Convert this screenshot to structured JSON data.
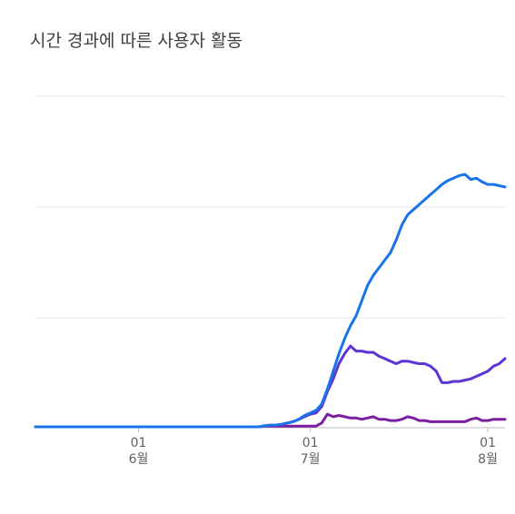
{
  "title": "시간 경과에 따른 사용자 활동",
  "chart_data": {
    "type": "line",
    "title": "시간 경과에 따른 사용자 활동",
    "xlabel": "",
    "ylabel": "",
    "x_ticks": [
      {
        "day": "01",
        "month": "6월",
        "index": 18
      },
      {
        "day": "01",
        "month": "7월",
        "index": 48
      },
      {
        "day": "01",
        "month": "8월",
        "index": 79
      }
    ],
    "y_tick_labels_shown": false,
    "ylim": [
      0,
      100
    ],
    "grid": true,
    "legend": "none",
    "series": [
      {
        "color": "#1a73e8",
        "values": [
          0,
          0,
          0,
          0,
          0,
          0,
          0,
          0,
          0,
          0,
          0,
          0,
          0,
          0,
          0,
          0,
          0,
          0,
          0,
          0,
          0,
          0,
          0,
          0,
          0,
          0,
          0,
          0,
          0,
          0,
          0,
          0,
          0,
          0,
          0,
          0,
          0,
          0,
          0,
          0,
          0.4,
          0.6,
          0.7,
          1,
          1.5,
          2,
          3,
          4.5,
          5.5,
          6.5,
          9,
          15,
          22,
          29,
          35,
          40,
          44,
          50,
          56,
          60,
          63,
          66,
          69,
          74,
          80,
          84,
          86,
          88,
          90,
          92,
          94,
          96,
          97.5,
          98.5,
          99.5,
          100,
          98,
          98.5,
          97,
          96,
          96,
          95.5,
          95
        ]
      },
      {
        "color": "#5e35d5",
        "values": [
          0,
          0,
          0,
          0,
          0,
          0,
          0,
          0,
          0,
          0,
          0,
          0,
          0,
          0,
          0,
          0,
          0,
          0,
          0,
          0,
          0,
          0,
          0,
          0,
          0,
          0,
          0,
          0,
          0,
          0,
          0,
          0,
          0,
          0,
          0,
          0,
          0,
          0,
          0,
          0,
          0.4,
          0.6,
          0.7,
          1,
          1.5,
          2,
          3,
          4,
          5,
          5.5,
          8,
          14,
          19,
          25,
          29,
          32,
          30,
          30,
          29.5,
          29.5,
          28,
          27,
          26,
          25,
          26,
          26,
          25.5,
          25,
          25,
          24,
          22,
          17.5,
          17.5,
          18,
          18,
          18.5,
          19,
          20,
          21,
          22,
          24,
          25,
          27
        ]
      },
      {
        "color": "#7b1fa2",
        "values": [
          0,
          0,
          0,
          0,
          0,
          0,
          0,
          0,
          0,
          0,
          0,
          0,
          0,
          0,
          0,
          0,
          0,
          0,
          0,
          0,
          0,
          0,
          0,
          0,
          0,
          0,
          0,
          0,
          0,
          0,
          0,
          0,
          0,
          0,
          0,
          0,
          0,
          0,
          0,
          0,
          0.3,
          0.3,
          0.3,
          0.3,
          0.3,
          0.3,
          0.3,
          0.3,
          0.3,
          0.3,
          1.5,
          5,
          4,
          4.5,
          4,
          3.5,
          3.5,
          3,
          3.5,
          4,
          3,
          3,
          2.5,
          2.5,
          3,
          4,
          3.5,
          2.5,
          2.5,
          2,
          2,
          2,
          2,
          2,
          2,
          2,
          3,
          3.5,
          2.5,
          2.5,
          3,
          3,
          3
        ]
      }
    ]
  }
}
